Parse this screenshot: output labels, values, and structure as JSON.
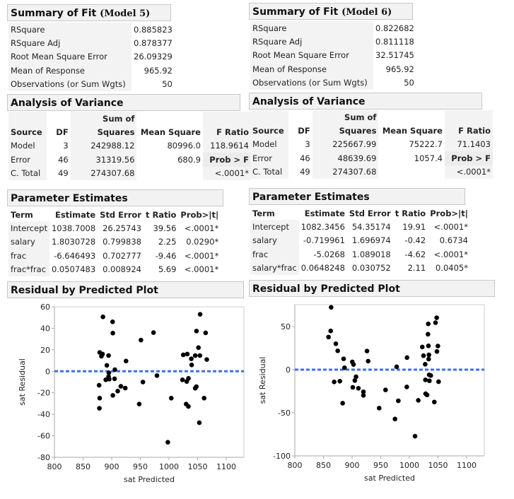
{
  "models": [
    {
      "summary": {
        "title": "Summary of Fit",
        "model_label": "(Model 5)",
        "rows": [
          {
            "label": "RSquare",
            "value": "0.885823"
          },
          {
            "label": "RSquare Adj",
            "value": "0.878377"
          },
          {
            "label": "Root Mean Square Error",
            "value": "26.09329"
          },
          {
            "label": "Mean of Response",
            "value": "965.92"
          },
          {
            "label": "Observations (or Sum Wgts)",
            "value": "50"
          }
        ]
      },
      "anova": {
        "title": "Analysis of Variance",
        "header_top": [
          "",
          "",
          "Sum of",
          "",
          ""
        ],
        "headers": [
          "Source",
          "DF",
          "Squares",
          "Mean Square",
          "F Ratio"
        ],
        "rows": [
          [
            "Model",
            "3",
            "242988.12",
            "80996.0",
            "118.9614"
          ],
          [
            "Error",
            "46",
            "31319.56",
            "680.9",
            "Prob > F"
          ],
          [
            "C. Total",
            "49",
            "274307.68",
            "",
            "<.0001*"
          ]
        ]
      },
      "params": {
        "title": "Parameter Estimates",
        "headers": [
          "Term",
          "Estimate",
          "Std Error",
          "t Ratio",
          "Prob>|t|"
        ],
        "rows": [
          [
            "Intercept",
            "1038.7008",
            "26.25743",
            "39.56",
            "<.0001*"
          ],
          [
            "salary",
            "1.8030728",
            "0.799838",
            "2.25",
            "0.0290*"
          ],
          [
            "frac",
            "-6.646493",
            "0.702777",
            "-9.46",
            "<.0001*"
          ],
          [
            "frac*frac",
            "0.0507483",
            "0.008924",
            "5.69",
            "<.0001*"
          ]
        ]
      },
      "plot_title": "Residual by Predicted Plot"
    },
    {
      "summary": {
        "title": "Summary of Fit",
        "model_label": "(Model 6)",
        "rows": [
          {
            "label": "RSquare",
            "value": "0.822682"
          },
          {
            "label": "RSquare Adj",
            "value": "0.811118"
          },
          {
            "label": "Root Mean Square Error",
            "value": "32.51745"
          },
          {
            "label": "Mean of Response",
            "value": "965.92"
          },
          {
            "label": "Observations (or Sum Wgts)",
            "value": "50"
          }
        ]
      },
      "anova": {
        "title": "Analysis of Variance",
        "header_top": [
          "",
          "",
          "Sum of",
          "",
          ""
        ],
        "headers": [
          "Source",
          "DF",
          "Squares",
          "Mean Square",
          "F Ratio"
        ],
        "rows": [
          [
            "Model",
            "3",
            "225667.99",
            "75222.7",
            "71.1403"
          ],
          [
            "Error",
            "46",
            "48639.69",
            "1057.4",
            "Prob > F"
          ],
          [
            "C. Total",
            "49",
            "274307.68",
            "",
            "<.0001*"
          ]
        ]
      },
      "params": {
        "title": "Parameter Estimates",
        "headers": [
          "Term",
          "Estimate",
          "Std Error",
          "t Ratio",
          "Prob>|t|"
        ],
        "rows": [
          [
            "Intercept",
            "1082.3456",
            "54.35174",
            "19.91",
            "<.0001*"
          ],
          [
            "salary",
            "-0.719961",
            "1.696974",
            "-0.42",
            "0.6734"
          ],
          [
            "frac",
            "-5.0268",
            "1.089018",
            "-4.62",
            "<.0001*"
          ],
          [
            "salary*frac",
            "0.0648248",
            "0.030752",
            "2.11",
            "0.0405*"
          ]
        ]
      },
      "plot_title": "Residual by Predicted Plot"
    }
  ],
  "chart_data": [
    {
      "type": "scatter",
      "xlabel": "sat Predicted",
      "ylabel": "sat Residual",
      "xlim": [
        800,
        1130
      ],
      "ylim": [
        -80,
        60
      ],
      "xticks": [
        800,
        850,
        900,
        950,
        1000,
        1050,
        1100
      ],
      "yticks": [
        -80,
        -60,
        -40,
        -20,
        0,
        20,
        40,
        60
      ],
      "reference_line": {
        "y": 0,
        "style": "dashed",
        "color": "#3b6ff5"
      },
      "point_color": "#000000",
      "grid": false,
      "points": [
        [
          884.7,
          50.6
        ],
        [
          901.5,
          46
        ],
        [
          902,
          35.5
        ],
        [
          951,
          29
        ],
        [
          973,
          36
        ],
        [
          879,
          17.5
        ],
        [
          884,
          16
        ],
        [
          882,
          14
        ],
        [
          894.5,
          14.6
        ],
        [
          925,
          9.5
        ],
        [
          891.5,
          5.5
        ],
        [
          905.5,
          1.5
        ],
        [
          895,
          -1.4
        ],
        [
          894.5,
          -5
        ],
        [
          889.6,
          -7.9
        ],
        [
          895.7,
          -7.3
        ],
        [
          905,
          -7
        ],
        [
          878,
          -13
        ],
        [
          916,
          -14
        ],
        [
          923.7,
          -15.6
        ],
        [
          910.5,
          -18.4
        ],
        [
          902,
          -22.4
        ],
        [
          879,
          -25
        ],
        [
          878.5,
          -34.4
        ],
        [
          948,
          -30.5
        ],
        [
          954.5,
          -10
        ],
        [
          979,
          -4
        ],
        [
          998,
          -66
        ],
        [
          1004,
          -25
        ],
        [
          1025,
          15.3
        ],
        [
          1032,
          16
        ],
        [
          1039,
          11.6
        ],
        [
          1039.6,
          5.9
        ],
        [
          1045.8,
          14.6
        ],
        [
          1054,
          14.6
        ],
        [
          1051.5,
          22
        ],
        [
          1048,
          37.4
        ],
        [
          1054.4,
          53
        ],
        [
          1064,
          35.7
        ],
        [
          1066,
          10.9
        ],
        [
          1023.6,
          -8
        ],
        [
          1031,
          -9.5
        ],
        [
          1034,
          -6.6
        ],
        [
          1030,
          -30.5
        ],
        [
          1033.9,
          -32.7
        ],
        [
          1045.8,
          -15.8
        ],
        [
          1047.8,
          -14.3
        ],
        [
          1061.4,
          -25
        ],
        [
          1053,
          -47.8
        ]
      ]
    },
    {
      "type": "scatter",
      "xlabel": "sat Predicted",
      "ylabel": "sat Residual",
      "xlim": [
        800,
        1130
      ],
      "ylim": [
        -100,
        76
      ],
      "xticks": [
        800,
        850,
        900,
        950,
        1000,
        1050,
        1100
      ],
      "yticks": [
        -100,
        -50,
        0,
        50
      ],
      "reference_line": {
        "y": 0,
        "style": "dashed",
        "color": "#3b6ff5"
      },
      "point_color": "#000000",
      "grid": false,
      "points": [
        [
          863.4,
          72.3
        ],
        [
          862.6,
          44.9
        ],
        [
          858.8,
          37.8
        ],
        [
          871.6,
          30.1
        ],
        [
          874.9,
          21.9
        ],
        [
          885.2,
          12.6
        ],
        [
          886.8,
          2.2
        ],
        [
          868.7,
          -14.2
        ],
        [
          878.6,
          -13.4
        ],
        [
          883.5,
          -38.9
        ],
        [
          900.4,
          9
        ],
        [
          902.5,
          6
        ],
        [
          901.2,
          -20.5
        ],
        [
          911,
          -21.6
        ],
        [
          906.9,
          -8.2
        ],
        [
          904.8,
          -12.6
        ],
        [
          919.8,
          -25.7
        ],
        [
          919.8,
          -29.8
        ],
        [
          926,
          21.6
        ],
        [
          928,
          9.9
        ],
        [
          947.3,
          -44.6
        ],
        [
          958.4,
          -23.5
        ],
        [
          977.8,
          3.3
        ],
        [
          974.9,
          -57.2
        ],
        [
          980.7,
          -36.1
        ],
        [
          995.9,
          14
        ],
        [
          995.5,
          -20
        ],
        [
          1009.9,
          -77.2
        ],
        [
          1015.6,
          -35.6
        ],
        [
          1022.6,
          26.3
        ],
        [
          1024.7,
          16.2
        ],
        [
          1027.6,
          6.3
        ],
        [
          1028,
          -11.8
        ],
        [
          1028.4,
          -27.9
        ],
        [
          1030.9,
          -29.3
        ],
        [
          1033,
          53.1
        ],
        [
          1032.5,
          41.1
        ],
        [
          1033.3,
          27.6
        ],
        [
          1034.2,
          17.2
        ],
        [
          1033.7,
          12.3
        ],
        [
          1034.6,
          -6
        ],
        [
          1035,
          -12.9
        ],
        [
          1037.4,
          -6.8
        ],
        [
          1043.6,
          -37.5
        ],
        [
          1045.7,
          54.5
        ],
        [
          1047.7,
          60.2
        ],
        [
          1049.8,
          27.4
        ],
        [
          1048.1,
          21.1
        ],
        [
          1051,
          -14
        ]
      ]
    }
  ]
}
